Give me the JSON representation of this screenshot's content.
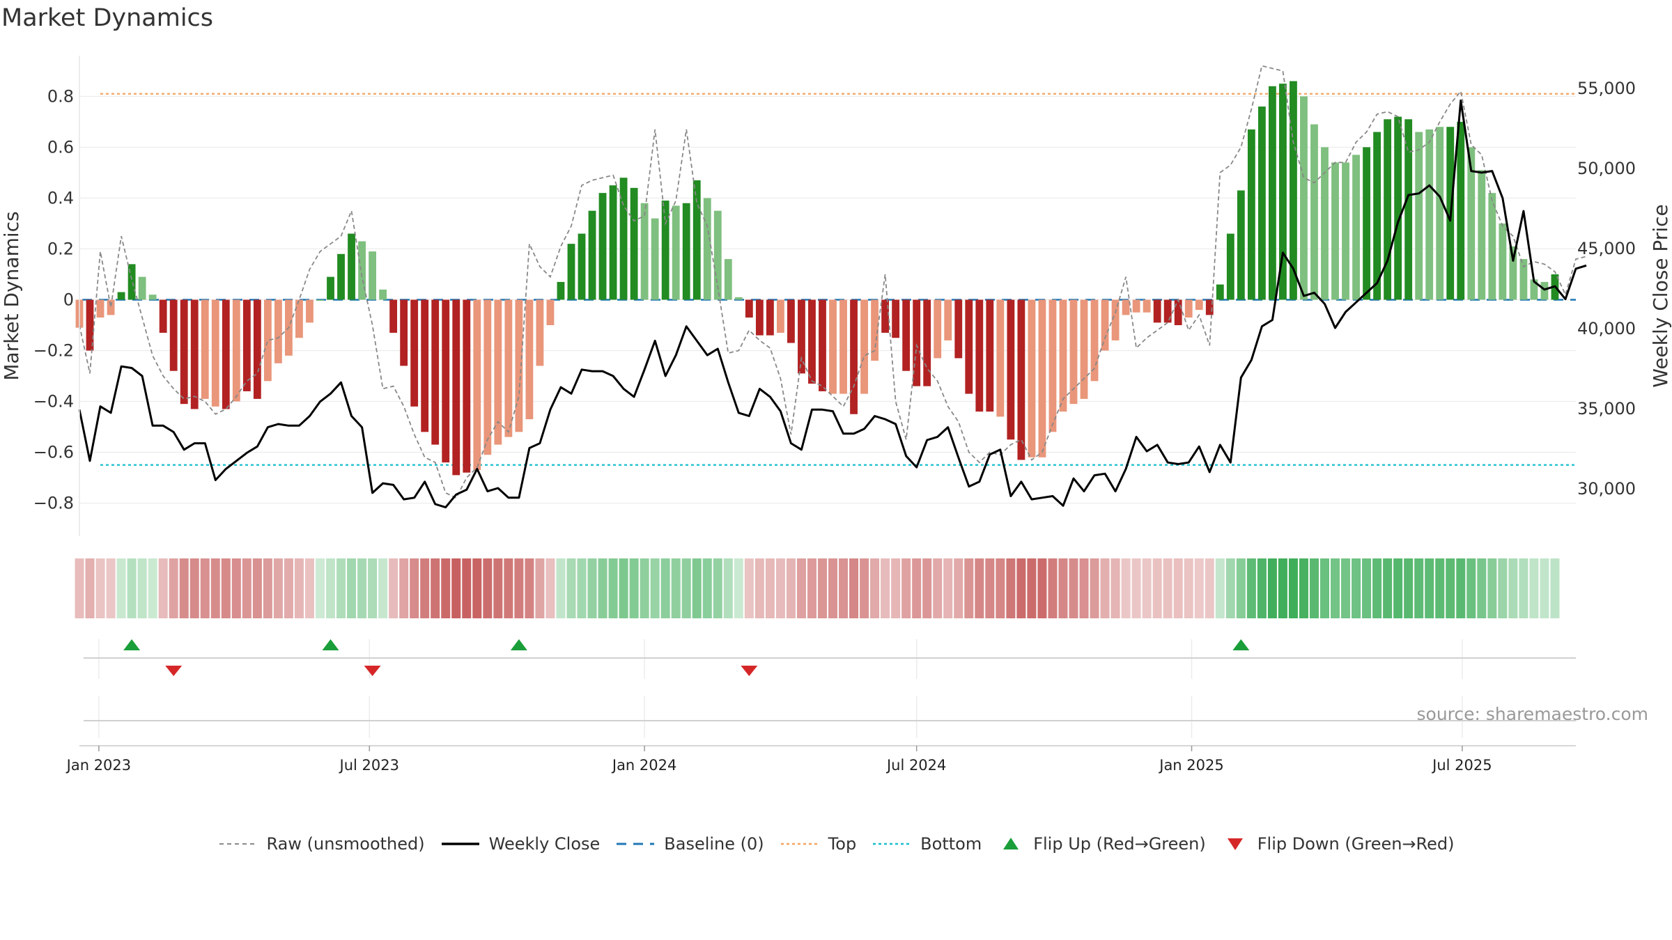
{
  "page": {
    "title": "Market Dynamics",
    "source": "source: sharemaestro.com"
  },
  "chart_data": {
    "type": "bar",
    "title": "Market Dynamics",
    "ylabel": "Market Dynamics",
    "y2label": "Weekly Close Price",
    "ylim": [
      -0.93,
      0.96
    ],
    "y2lim": [
      27000,
      57000
    ],
    "yticks": [
      -0.8,
      -0.6,
      -0.4,
      -0.2,
      0,
      0.2,
      0.4,
      0.6,
      0.8
    ],
    "ytick_labels": [
      "−0.8",
      "−0.6",
      "−0.4",
      "−0.2",
      "0",
      "0.2",
      "0.4",
      "0.6",
      "0.8"
    ],
    "y2ticks": [
      30000,
      35000,
      40000,
      45000,
      50000,
      55000
    ],
    "y2tick_labels": [
      "30,000",
      "35,000",
      "40,000",
      "45,000",
      "50,000",
      "55,000"
    ],
    "x_range": [
      "2022-12-19",
      "2025-09-15"
    ],
    "xticks": [
      "2023-01-01",
      "2023-07-01",
      "2024-01-01",
      "2024-07-01",
      "2025-01-01",
      "2025-07-01"
    ],
    "xtick_labels": [
      "Jan 2023",
      "Jul 2023",
      "Jan 2024",
      "Jul 2024",
      "Jan 2025",
      "Jul 2025"
    ],
    "first_week": "2022-12-19",
    "weeks": 146,
    "top_threshold": 0.81,
    "bottom_threshold": -0.65,
    "baseline": 0,
    "colors": {
      "strong_up": "#228b22",
      "weak_up": "#7fbf7f",
      "strong_down": "#b22222",
      "weak_down": "#e9967a",
      "raw": "#888888",
      "close": "#000000",
      "baseline": "#1f77b4",
      "top": "#f4a460",
      "bottom": "#17becf",
      "flip_up": "#1a9e3a",
      "flip_down": "#d62728"
    },
    "series": [
      {
        "name": "Market Dynamics",
        "values": [
          -0.11,
          -0.2,
          -0.07,
          -0.06,
          0.03,
          0.14,
          0.09,
          0.02,
          -0.13,
          -0.28,
          -0.41,
          -0.43,
          -0.39,
          -0.42,
          -0.43,
          -0.4,
          -0.36,
          -0.39,
          -0.32,
          -0.25,
          -0.22,
          -0.15,
          -0.09,
          0.0,
          0.09,
          0.18,
          0.26,
          0.23,
          0.19,
          0.04,
          -0.13,
          -0.26,
          -0.42,
          -0.52,
          -0.57,
          -0.64,
          -0.69,
          -0.68,
          -0.67,
          -0.61,
          -0.57,
          -0.54,
          -0.52,
          -0.47,
          -0.26,
          -0.1,
          0.07,
          0.22,
          0.26,
          0.35,
          0.42,
          0.45,
          0.48,
          0.44,
          0.38,
          0.32,
          0.39,
          0.37,
          0.38,
          0.47,
          0.4,
          0.35,
          0.16,
          0.01,
          -0.07,
          -0.14,
          -0.14,
          -0.13,
          -0.17,
          -0.29,
          -0.33,
          -0.36,
          -0.37,
          -0.37,
          -0.45,
          -0.37,
          -0.24,
          -0.13,
          -0.15,
          -0.28,
          -0.34,
          -0.34,
          -0.23,
          -0.16,
          -0.23,
          -0.37,
          -0.44,
          -0.44,
          -0.46,
          -0.55,
          -0.63,
          -0.62,
          -0.62,
          -0.52,
          -0.44,
          -0.41,
          -0.39,
          -0.32,
          -0.2,
          -0.16,
          -0.06,
          -0.05,
          -0.05,
          -0.09,
          -0.09,
          -0.1,
          -0.07,
          -0.04,
          -0.06,
          0.06,
          0.26,
          0.43,
          0.67,
          0.76,
          0.84,
          0.85,
          0.86,
          0.8,
          0.69,
          0.6,
          0.54,
          0.54,
          0.57,
          0.6,
          0.66,
          0.71,
          0.72,
          0.71,
          0.66,
          0.67,
          0.68,
          0.68,
          0.7,
          0.6,
          0.51,
          0.42,
          0.3,
          0.21,
          0.16,
          0.08,
          0.07,
          0.1
        ]
      },
      {
        "name": "Raw (unsmoothed)",
        "values": [
          -0.1,
          -0.29,
          0.19,
          -0.03,
          0.25,
          0.08,
          -0.07,
          -0.22,
          -0.3,
          -0.35,
          -0.39,
          -0.38,
          -0.4,
          -0.45,
          -0.43,
          -0.38,
          -0.32,
          -0.29,
          -0.16,
          -0.15,
          -0.11,
          0.0,
          0.12,
          0.19,
          0.22,
          0.25,
          0.35,
          0.09,
          -0.1,
          -0.35,
          -0.34,
          -0.42,
          -0.53,
          -0.62,
          -0.64,
          -0.76,
          -0.78,
          -0.7,
          -0.66,
          -0.55,
          -0.48,
          -0.52,
          -0.38,
          0.22,
          0.13,
          0.09,
          0.21,
          0.29,
          0.45,
          0.47,
          0.48,
          0.49,
          0.37,
          0.31,
          0.33,
          0.67,
          0.3,
          0.39,
          0.67,
          0.38,
          0.29,
          0.05,
          -0.21,
          -0.2,
          -0.12,
          -0.16,
          -0.19,
          -0.31,
          -0.53,
          -0.23,
          -0.32,
          -0.34,
          -0.38,
          -0.42,
          -0.34,
          -0.22,
          -0.2,
          0.1,
          -0.4,
          -0.55,
          -0.18,
          -0.27,
          -0.32,
          -0.42,
          -0.48,
          -0.6,
          -0.64,
          -0.6,
          -0.61,
          -0.57,
          -0.55,
          -0.63,
          -0.6,
          -0.49,
          -0.39,
          -0.35,
          -0.31,
          -0.27,
          -0.15,
          -0.05,
          0.09,
          -0.19,
          -0.15,
          -0.12,
          -0.09,
          0.0,
          -0.12,
          -0.06,
          -0.18,
          0.5,
          0.53,
          0.6,
          0.75,
          0.92,
          0.91,
          0.9,
          0.62,
          0.48,
          0.46,
          0.5,
          0.54,
          0.54,
          0.62,
          0.66,
          0.73,
          0.74,
          0.72,
          0.58,
          0.59,
          0.62,
          0.7,
          0.77,
          0.82,
          0.61,
          0.57,
          0.39,
          0.29,
          0.25,
          0.13,
          0.15,
          0.14,
          0.11,
          0.02,
          0.16,
          0.17
        ]
      },
      {
        "name": "Weekly Close",
        "axis": "right",
        "values": [
          34900,
          31700,
          35100,
          34700,
          37600,
          37500,
          37000,
          33900,
          33900,
          33500,
          32400,
          32800,
          32800,
          30500,
          31200,
          31700,
          32200,
          32600,
          33800,
          34000,
          33900,
          33900,
          34500,
          35400,
          35900,
          36600,
          34500,
          33800,
          29700,
          30300,
          30200,
          29300,
          29400,
          30400,
          29000,
          28800,
          29600,
          29900,
          31200,
          29800,
          30000,
          29400,
          29400,
          32500,
          32800,
          34900,
          36300,
          35900,
          37400,
          37300,
          37300,
          37000,
          36200,
          35700,
          37400,
          39200,
          37000,
          38300,
          40100,
          39200,
          38300,
          38700,
          36600,
          34700,
          34500,
          36200,
          35700,
          34800,
          32800,
          32400,
          34900,
          34900,
          34800,
          33400,
          33400,
          33700,
          34500,
          34300,
          34000,
          32000,
          31300,
          33000,
          33200,
          33800,
          31900,
          30100,
          30400,
          32100,
          32400,
          29500,
          30400,
          29300,
          29400,
          29500,
          28900,
          30600,
          29800,
          30800,
          30900,
          29800,
          31200,
          33200,
          32300,
          32700,
          31600,
          31500,
          31600,
          32600,
          31000,
          32700,
          31600,
          36900,
          38000,
          40100,
          40500,
          44700,
          43700,
          42000,
          42200,
          41500,
          40000,
          41000,
          41600,
          42200,
          42800,
          44200,
          46600,
          48300,
          48400,
          48900,
          48200,
          46700,
          54200,
          49800,
          49700,
          49800,
          48100,
          44200,
          47300,
          42900,
          42400,
          42600,
          41800,
          43700,
          43900
        ]
      }
    ],
    "bar_colors": [
      "d",
      "D",
      "d",
      "d",
      "U",
      "U",
      "u",
      "u",
      "D",
      "D",
      "D",
      "D",
      "d",
      "d",
      "D",
      "d",
      "D",
      "D",
      "d",
      "d",
      "d",
      "d",
      "d",
      "u",
      "U",
      "U",
      "U",
      "u",
      "u",
      "u",
      "D",
      "D",
      "D",
      "D",
      "D",
      "D",
      "D",
      "D",
      "d",
      "d",
      "d",
      "d",
      "d",
      "d",
      "d",
      "d",
      "U",
      "U",
      "U",
      "U",
      "U",
      "U",
      "U",
      "U",
      "u",
      "u",
      "U",
      "u",
      "U",
      "U",
      "u",
      "u",
      "u",
      "u",
      "D",
      "D",
      "D",
      "d",
      "D",
      "D",
      "D",
      "D",
      "d",
      "d",
      "D",
      "d",
      "d",
      "D",
      "D",
      "D",
      "D",
      "D",
      "d",
      "d",
      "D",
      "D",
      "D",
      "D",
      "d",
      "D",
      "D",
      "d",
      "d",
      "d",
      "d",
      "d",
      "d",
      "d",
      "d",
      "d",
      "d",
      "d",
      "d",
      "D",
      "D",
      "D",
      "d",
      "d",
      "D",
      "U",
      "U",
      "U",
      "U",
      "U",
      "U",
      "U",
      "U",
      "u",
      "u",
      "u",
      "u",
      "u",
      "u",
      "U",
      "U",
      "U",
      "U",
      "U",
      "u",
      "u",
      "u",
      "U",
      "U",
      "u",
      "u",
      "u",
      "u",
      "u",
      "u",
      "u",
      "u",
      "U"
    ],
    "flips": [
      {
        "type": "up",
        "date": "2023-01-23"
      },
      {
        "type": "down",
        "date": "2023-02-20"
      },
      {
        "type": "up",
        "date": "2023-06-05"
      },
      {
        "type": "down",
        "date": "2023-07-03"
      },
      {
        "type": "up",
        "date": "2023-10-09"
      },
      {
        "type": "down",
        "date": "2024-03-11"
      },
      {
        "type": "up",
        "date": "2025-02-03"
      }
    ]
  },
  "legend": [
    {
      "key": "raw",
      "label": "Raw (unsmoothed)"
    },
    {
      "key": "close",
      "label": "Weekly Close"
    },
    {
      "key": "baseline",
      "label": "Baseline (0)"
    },
    {
      "key": "top",
      "label": "Top"
    },
    {
      "key": "bottom",
      "label": "Bottom"
    },
    {
      "key": "flip_up",
      "label": "Flip Up (Red→Green)"
    },
    {
      "key": "flip_down",
      "label": "Flip Down (Green→Red)"
    }
  ]
}
